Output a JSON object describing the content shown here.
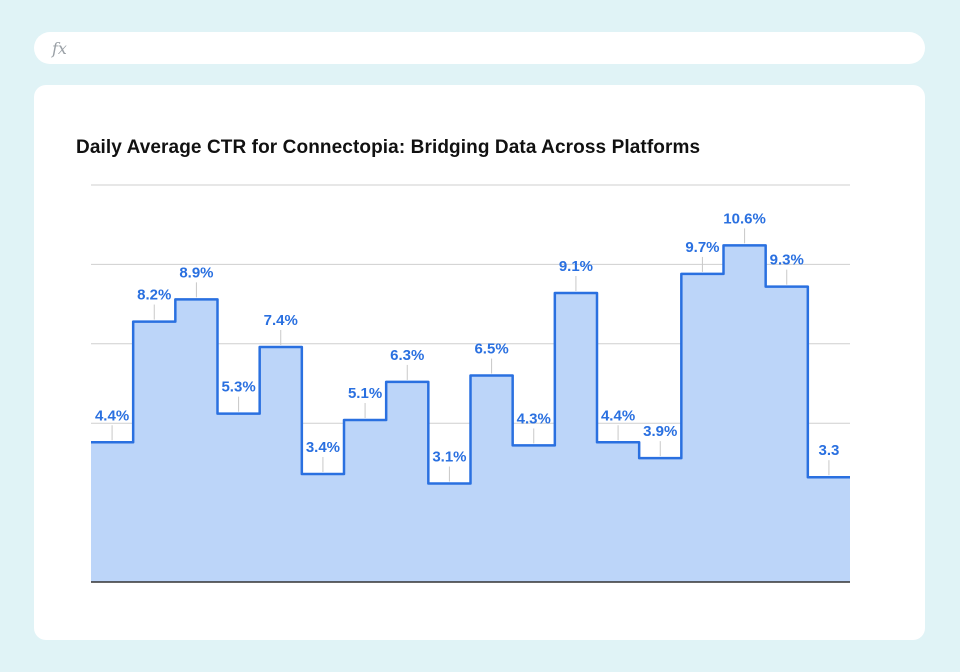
{
  "formula_bar": {
    "icon": "fx-icon",
    "text": "fx"
  },
  "chart_data": {
    "type": "area",
    "step": true,
    "title": "Daily Average CTR for Connectopia: Bridging Data Across Platforms",
    "xlabel": "",
    "ylabel": "",
    "ylim": [
      0,
      12.5
    ],
    "grid": true,
    "values": [
      4.4,
      8.2,
      8.9,
      5.3,
      7.4,
      3.4,
      5.1,
      6.3,
      3.1,
      6.5,
      4.3,
      9.1,
      4.4,
      3.9,
      9.7,
      10.6,
      9.3,
      3.3
    ],
    "labels": [
      "4.4%",
      "8.2%",
      "8.9%",
      "5.3%",
      "7.4%",
      "3.4%",
      "5.1%",
      "6.3%",
      "3.1%",
      "6.5%",
      "4.3%",
      "9.1%",
      "4.4%",
      "3.9%",
      "9.7%",
      "10.6%",
      "9.3%",
      "3.3"
    ],
    "colors": {
      "line": "#2a70e0",
      "fill": "#bcd5f9",
      "grid": "#cfcfcf",
      "axis": "#333333",
      "label": "#2a70e0"
    }
  }
}
